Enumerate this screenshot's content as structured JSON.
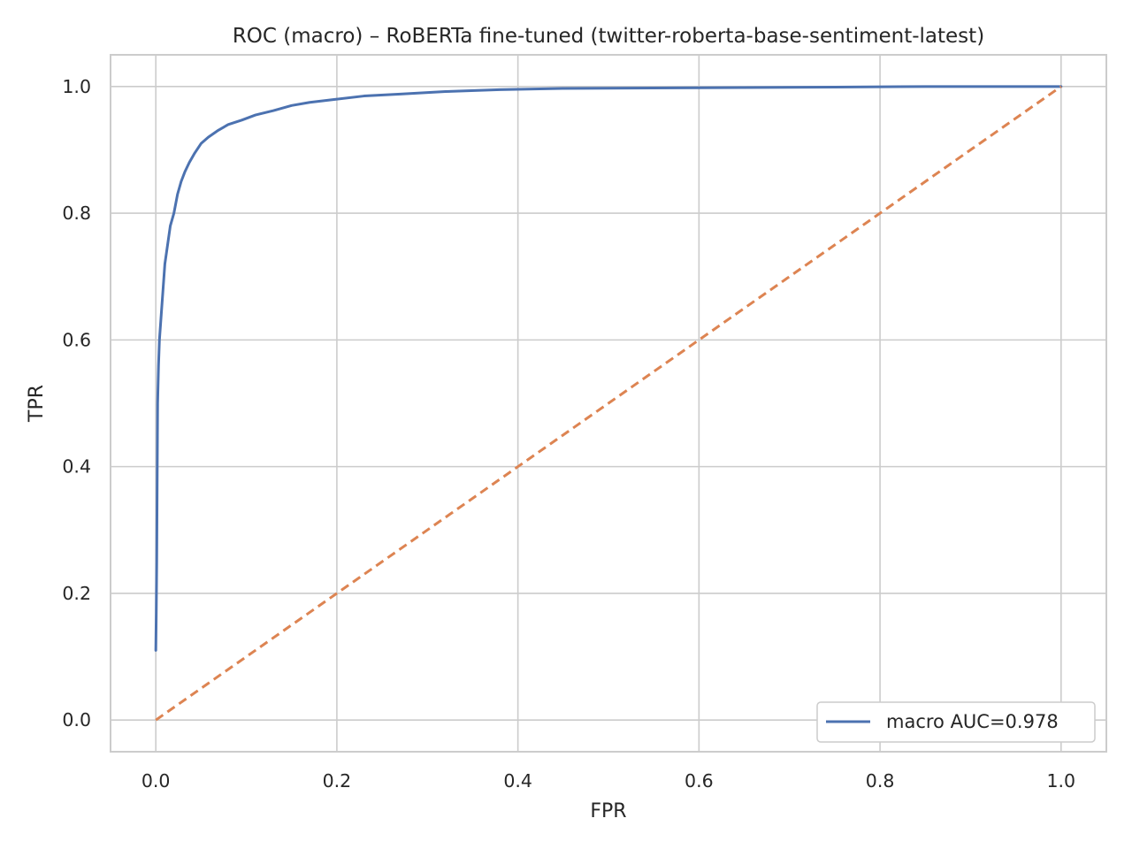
{
  "chart_data": {
    "type": "line",
    "title": "ROC (macro) – RoBERTa fine-tuned (twitter-roberta-base-sentiment-latest)",
    "xlabel": "FPR",
    "ylabel": "TPR",
    "xlim": [
      -0.05,
      1.05
    ],
    "ylim": [
      -0.05,
      1.05
    ],
    "xticks": [
      0.0,
      0.2,
      0.4,
      0.6,
      0.8,
      1.0
    ],
    "xtick_labels": [
      "0.0",
      "0.2",
      "0.4",
      "0.6",
      "0.8",
      "1.0"
    ],
    "yticks": [
      0.0,
      0.2,
      0.4,
      0.6,
      0.8,
      1.0
    ],
    "ytick_labels": [
      "0.0",
      "0.2",
      "0.4",
      "0.6",
      "0.8",
      "1.0"
    ],
    "grid": true,
    "legend_position": "bottom-right",
    "series": [
      {
        "name": "macro AUC=0.978",
        "color": "#4c72b0",
        "style": "solid",
        "x": [
          0.0,
          0.0005,
          0.001,
          0.0015,
          0.002,
          0.003,
          0.004,
          0.006,
          0.008,
          0.01,
          0.013,
          0.016,
          0.02,
          0.024,
          0.028,
          0.032,
          0.037,
          0.043,
          0.05,
          0.058,
          0.068,
          0.08,
          0.095,
          0.11,
          0.13,
          0.15,
          0.17,
          0.2,
          0.23,
          0.27,
          0.32,
          0.38,
          0.45,
          0.6,
          0.75,
          0.85,
          1.0
        ],
        "y": [
          0.11,
          0.17,
          0.25,
          0.38,
          0.5,
          0.56,
          0.6,
          0.64,
          0.68,
          0.72,
          0.75,
          0.78,
          0.8,
          0.83,
          0.85,
          0.865,
          0.88,
          0.895,
          0.91,
          0.92,
          0.93,
          0.94,
          0.947,
          0.955,
          0.962,
          0.97,
          0.975,
          0.98,
          0.985,
          0.988,
          0.992,
          0.995,
          0.997,
          0.998,
          0.999,
          1.0,
          1.0
        ]
      },
      {
        "name": "",
        "color": "#dd8452",
        "style": "dashed",
        "x": [
          0.0,
          1.0
        ],
        "y": [
          0.0,
          1.0
        ]
      }
    ]
  }
}
